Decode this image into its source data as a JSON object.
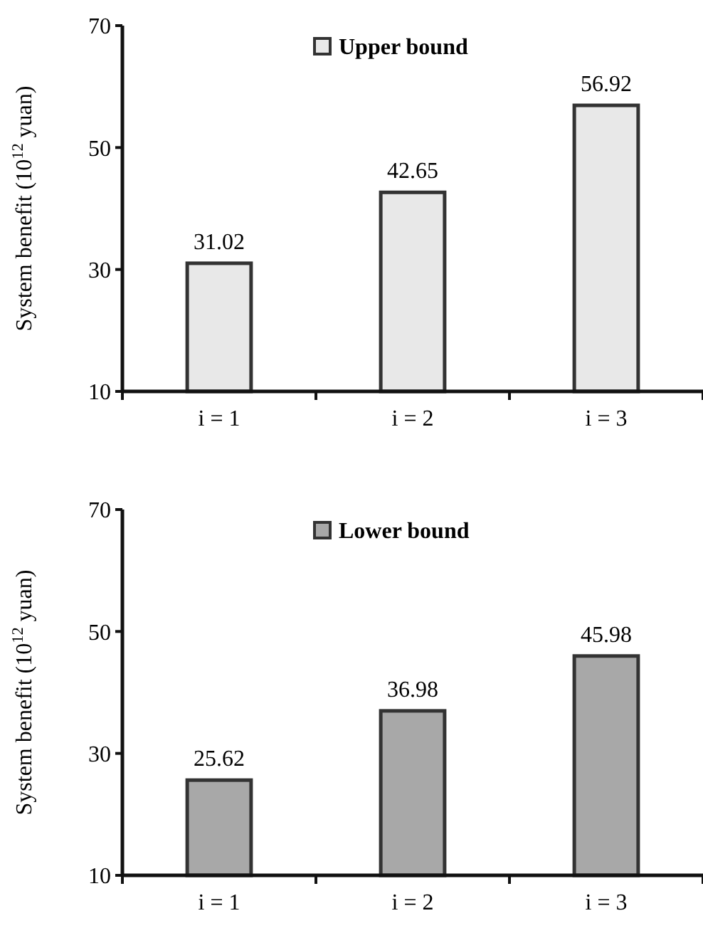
{
  "chart_data": [
    {
      "type": "bar",
      "categories": [
        "i = 1",
        "i = 2",
        "i = 3"
      ],
      "ylabel": "System benefit (10$^{12}$ yuan)",
      "ylim": [
        10,
        70
      ],
      "yticks": [
        10,
        30,
        50,
        70
      ],
      "legend": "top",
      "data_labels": true,
      "series": [
        {
          "name": "Upper bound",
          "color": "#e8e8e8",
          "values": [
            31.02,
            42.65,
            56.92
          ]
        }
      ]
    },
    {
      "type": "bar",
      "categories": [
        "i = 1",
        "i = 2",
        "i = 3"
      ],
      "ylabel": "System benefit (10$^{12}$ yuan)",
      "ylim": [
        10,
        70
      ],
      "yticks": [
        10,
        30,
        50,
        70
      ],
      "legend": "top",
      "data_labels": true,
      "series": [
        {
          "name": "Lower bound",
          "color": "#a8a8a8",
          "values": [
            25.62,
            36.98,
            45.98
          ]
        }
      ]
    }
  ]
}
